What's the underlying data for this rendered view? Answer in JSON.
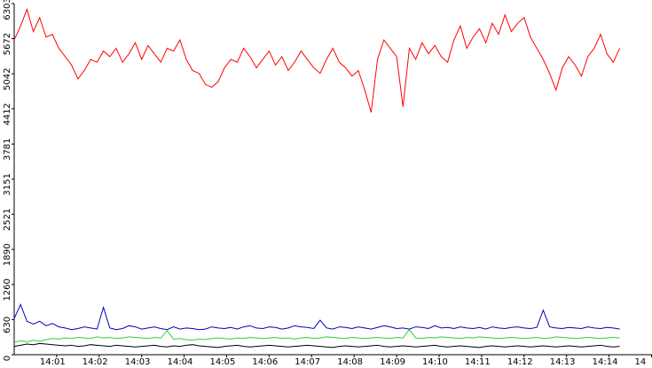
{
  "chart_data": {
    "type": "line",
    "x": [
      0,
      0.15,
      0.3,
      0.45,
      0.6,
      0.75,
      0.9,
      1.05,
      1.2,
      1.35,
      1.5,
      1.65,
      1.8,
      1.95,
      2.1,
      2.25,
      2.4,
      2.55,
      2.7,
      2.85,
      3,
      3.15,
      3.3,
      3.45,
      3.6,
      3.75,
      3.9,
      4.05,
      4.2,
      4.35,
      4.5,
      4.65,
      4.8,
      4.95,
      5.1,
      5.25,
      5.4,
      5.55,
      5.7,
      5.85,
      6,
      6.15,
      6.3,
      6.45,
      6.6,
      6.75,
      6.9,
      7.05,
      7.2,
      7.35,
      7.5,
      7.65,
      7.8,
      7.95,
      8.1,
      8.25,
      8.4,
      8.55,
      8.7,
      8.85,
      9,
      9.15,
      9.3,
      9.45,
      9.6,
      9.75,
      9.9,
      10.05,
      10.2,
      10.35,
      10.5,
      10.65,
      10.8,
      10.95,
      11.1,
      11.25,
      11.4,
      11.55,
      11.7,
      11.85,
      12,
      12.15,
      12.3,
      12.45,
      12.6,
      12.75,
      12.9,
      13.05,
      13.2,
      13.35,
      13.5,
      13.65,
      13.8,
      13.95,
      14.1,
      14.25
    ],
    "series": [
      {
        "color": "#ff0000",
        "values": [
          5650,
          5900,
          6200,
          5800,
          6050,
          5700,
          5750,
          5500,
          5350,
          5200,
          4950,
          5100,
          5300,
          5250,
          5450,
          5350,
          5500,
          5250,
          5400,
          5600,
          5300,
          5550,
          5400,
          5250,
          5500,
          5450,
          5650,
          5300,
          5100,
          5050,
          4850,
          4800,
          4900,
          5150,
          5300,
          5250,
          5500,
          5350,
          5150,
          5300,
          5450,
          5200,
          5350,
          5100,
          5250,
          5450,
          5300,
          5150,
          5050,
          5300,
          5500,
          5250,
          5150,
          5000,
          5100,
          4750,
          4350,
          5300,
          5650,
          5500,
          5350,
          4450,
          5500,
          5300,
          5600,
          5400,
          5550,
          5350,
          5250,
          5650,
          5900,
          5500,
          5700,
          5850,
          5600,
          5950,
          5750,
          6100,
          5800,
          5950,
          6050,
          5700,
          5500,
          5300,
          5050,
          4750,
          5150,
          5350,
          5200,
          5000,
          5350,
          5500,
          5750,
          5400,
          5250,
          5500
        ]
      },
      {
        "color": "#0000c0",
        "values": [
          650,
          900,
          600,
          550,
          600,
          520,
          560,
          500,
          480,
          450,
          470,
          500,
          480,
          460,
          850,
          480,
          450,
          470,
          520,
          500,
          460,
          480,
          500,
          470,
          450,
          500,
          460,
          480,
          470,
          450,
          460,
          500,
          480,
          470,
          490,
          460,
          500,
          520,
          480,
          470,
          500,
          490,
          460,
          480,
          520,
          500,
          490,
          470,
          620,
          480,
          460,
          500,
          490,
          470,
          500,
          480,
          460,
          490,
          520,
          500,
          470,
          480,
          460,
          500,
          490,
          470,
          520,
          480,
          490,
          470,
          500,
          480,
          470,
          490,
          460,
          500,
          480,
          470,
          490,
          500,
          480,
          470,
          490,
          800,
          500,
          480,
          470,
          490,
          480,
          470,
          500,
          480,
          470,
          490,
          480,
          460
        ]
      },
      {
        "color": "#33cc33",
        "values": [
          220,
          250,
          230,
          260,
          240,
          270,
          290,
          280,
          300,
          290,
          310,
          300,
          290,
          320,
          300,
          310,
          290,
          300,
          320,
          310,
          300,
          290,
          310,
          300,
          430,
          280,
          290,
          270,
          260,
          280,
          270,
          290,
          300,
          290,
          280,
          300,
          290,
          310,
          300,
          290,
          300,
          310,
          290,
          300,
          280,
          300,
          310,
          290,
          300,
          320,
          310,
          300,
          290,
          310,
          300,
          290,
          300,
          310,
          300,
          290,
          310,
          300,
          450,
          300,
          290,
          310,
          300,
          320,
          310,
          300,
          290,
          310,
          300,
          320,
          310,
          300,
          290,
          300,
          310,
          300,
          290,
          300,
          310,
          290,
          300,
          320,
          310,
          300,
          290,
          300,
          310,
          300,
          290,
          300,
          310,
          300
        ]
      },
      {
        "color": "#000000",
        "values": [
          150,
          170,
          190,
          180,
          200,
          190,
          180,
          170,
          160,
          170,
          150,
          160,
          180,
          170,
          160,
          150,
          170,
          160,
          150,
          140,
          150,
          160,
          170,
          150,
          140,
          160,
          150,
          170,
          180,
          160,
          150,
          140,
          130,
          150,
          160,
          170,
          150,
          140,
          150,
          160,
          170,
          160,
          150,
          140,
          150,
          160,
          170,
          160,
          150,
          140,
          130,
          150,
          160,
          150,
          140,
          150,
          160,
          170,
          150,
          140,
          150,
          160,
          150,
          140,
          150,
          160,
          170,
          150,
          140,
          150,
          160,
          150,
          140,
          130,
          150,
          160,
          150,
          140,
          150,
          160,
          150,
          140,
          150,
          160,
          150,
          140,
          150,
          160,
          150,
          140,
          150,
          160,
          170,
          150,
          140,
          150
        ]
      }
    ],
    "ylim": [
      0,
      6303
    ],
    "yticks": [
      0,
      630,
      1260,
      1890,
      2521,
      3151,
      3781,
      4412,
      5042,
      5672,
      6303
    ],
    "xlim": [
      0,
      15.01
    ],
    "xticks": [
      {
        "value": 1,
        "label": "14:01"
      },
      {
        "value": 2,
        "label": "14:02"
      },
      {
        "value": 3,
        "label": "14:03"
      },
      {
        "value": 4,
        "label": "14:04"
      },
      {
        "value": 5,
        "label": "14:05"
      },
      {
        "value": 6,
        "label": "14:06"
      },
      {
        "value": 7,
        "label": "14:07"
      },
      {
        "value": 8,
        "label": "14:08"
      },
      {
        "value": 9,
        "label": "14:09"
      },
      {
        "value": 10,
        "label": "14:10"
      },
      {
        "value": 11,
        "label": "14:11"
      },
      {
        "value": 12,
        "label": "14:12"
      },
      {
        "value": 13,
        "label": "14:13"
      },
      {
        "value": 14,
        "label": "14:14"
      },
      {
        "value": 15,
        "label": "14"
      }
    ]
  }
}
